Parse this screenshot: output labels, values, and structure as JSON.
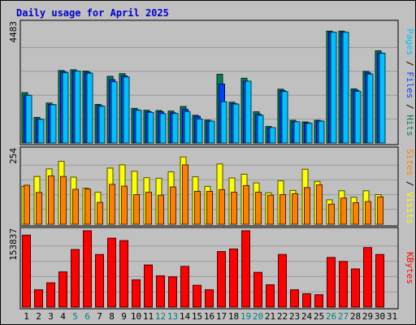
{
  "colors": {
    "page_bg": "#c0c0c0",
    "panel_bg": "#c0c0c0",
    "grid": "#9a9a9a",
    "title": "#0000cc",
    "hits": "#00805c",
    "files": "#0040ff",
    "pages": "#00c0ff",
    "visits": "#ffff00",
    "sites": "#ff8000",
    "kbytes": "#ff0000",
    "day_normal": "#000000",
    "day_weekend": "#007f7f"
  },
  "chart_data": {
    "title": "Daily usage for April 2025",
    "days": [
      1,
      2,
      3,
      4,
      5,
      6,
      7,
      8,
      9,
      10,
      11,
      12,
      13,
      14,
      15,
      16,
      17,
      18,
      19,
      20,
      21,
      22,
      23,
      24,
      25,
      26,
      27,
      28,
      29,
      30,
      31
    ],
    "weekend_days": [
      5,
      6,
      12,
      13,
      19,
      20,
      26,
      27
    ],
    "panels": [
      {
        "type": "bar",
        "ylabel_max": "4483",
        "ymax": 4483,
        "legend": [
          {
            "label": "Pages",
            "color_key": "pages"
          },
          {
            "label": "Files",
            "color_key": "files"
          },
          {
            "label": "Hits",
            "color_key": "hits"
          }
        ],
        "series": [
          {
            "name": "Hits",
            "color_key": "hits",
            "values": [
              1890,
              960,
              1500,
              2720,
              2750,
              2700,
              1450,
              2500,
              2600,
              1300,
              1230,
              1220,
              1200,
              1370,
              1040,
              860,
              2580,
              1530,
              2430,
              1170,
              620,
              2020,
              850,
              790,
              850,
              4200,
              4200,
              2030,
              2690,
              3460,
              null
            ]
          },
          {
            "name": "Files",
            "color_key": "files",
            "values": [
              1800,
              900,
              1450,
              2670,
              2700,
              2650,
              1400,
              2380,
              2520,
              1240,
              1170,
              1170,
              1130,
              1260,
              1000,
              820,
              2210,
              1480,
              2320,
              1080,
              570,
              1960,
              800,
              760,
              830,
              4160,
              4160,
              1980,
              2630,
              3380,
              null
            ]
          },
          {
            "name": "Pages",
            "color_key": "pages",
            "values": [
              1790,
              890,
              1440,
              2640,
              2700,
              2620,
              1380,
              2300,
              2480,
              1230,
              1150,
              1100,
              1110,
              1180,
              900,
              820,
              1550,
              1460,
              2320,
              1040,
              580,
              1930,
              800,
              740,
              820,
              4160,
              4160,
              1940,
              2590,
              3370,
              null
            ]
          }
        ]
      },
      {
        "type": "bar",
        "ylabel_max": "254",
        "ymax": 254,
        "legend": [
          {
            "label": "Sites",
            "color_key": "sites"
          },
          {
            "label": "Visits",
            "color_key": "visits"
          }
        ],
        "series": [
          {
            "name": "Visits",
            "color_key": "visits",
            "values": [
              130,
              164,
              190,
              216,
              162,
              124,
              110,
              193,
              204,
              182,
              160,
              158,
              180,
              231,
              163,
              130,
              207,
              159,
              172,
              142,
              108,
              149,
              116,
              189,
              147,
              84,
              115,
              93,
              115,
              102,
              null
            ]
          },
          {
            "name": "Sites",
            "color_key": "sites",
            "values": [
              134,
              109,
              166,
              164,
              120,
              121,
              75,
              137,
              131,
              102,
              110,
              100,
              128,
              204,
              113,
              113,
              119,
              110,
              133,
              110,
              100,
              102,
              105,
              126,
              135,
              69,
              90,
              74,
              78,
              94,
              null
            ]
          }
        ]
      },
      {
        "type": "bar",
        "ylabel_max": "153837",
        "ymax": 153837,
        "legend": [
          {
            "label": "KBytes",
            "color_key": "kbytes"
          }
        ],
        "series": [
          {
            "name": "KBytes",
            "color_key": "kbytes",
            "values": [
              145000,
              35000,
              49000,
              71000,
              116000,
              153837,
              106000,
              139000,
              134000,
              55000,
              85000,
              63000,
              61000,
              82000,
              44000,
              35000,
              112000,
              117000,
              153837,
              70000,
              45000,
              106000,
              35000,
              27000,
              25000,
              100000,
              92000,
              77000,
              120000,
              106000,
              null
            ]
          }
        ]
      }
    ]
  }
}
